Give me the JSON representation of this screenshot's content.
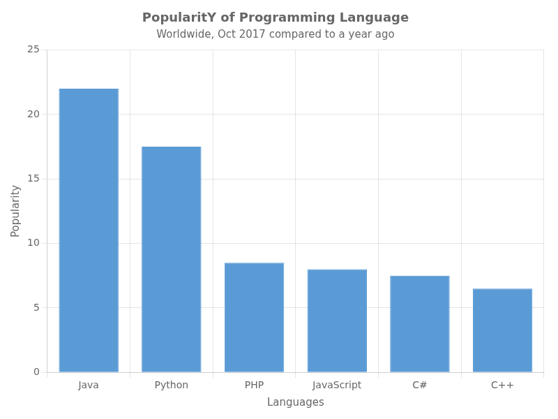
{
  "chart_data": {
    "type": "bar",
    "title": "PopularitY of Programming Language",
    "subtitle": "Worldwide, Oct 2017 compared to a year ago",
    "xlabel": "Languages",
    "ylabel": "Popularity",
    "categories": [
      "Java",
      "Python",
      "PHP",
      "JavaScript",
      "C#",
      "C++"
    ],
    "values": [
      22,
      17.5,
      8.5,
      8,
      7.5,
      6.5
    ],
    "color": "#5b9bd5",
    "ylim": [
      0,
      25
    ],
    "yticks": [
      0,
      5,
      10,
      15,
      20,
      25
    ],
    "grid": true
  }
}
